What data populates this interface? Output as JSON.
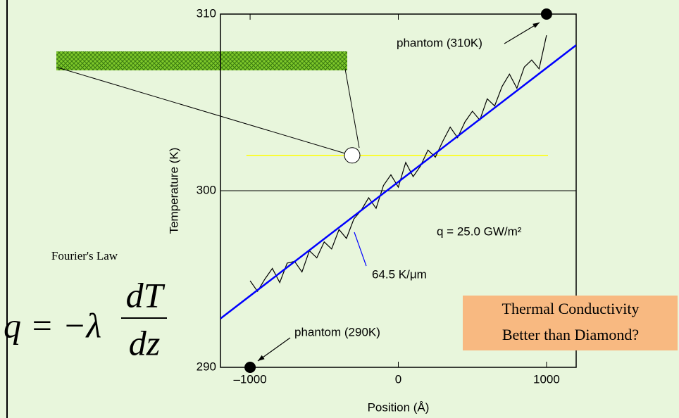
{
  "chart_data": {
    "type": "line",
    "xlabel": "Position (Å)",
    "ylabel": "Temperature (K)",
    "xlim": [
      -1200,
      1200
    ],
    "ylim": [
      290,
      310
    ],
    "xticks": [
      {
        "value": -1000,
        "label": "–1000"
      },
      0,
      1000
    ],
    "yticks": [
      290,
      300,
      310
    ],
    "series": [
      {
        "color": "#000000",
        "x": [
          -1000,
          -950,
          -900,
          -850,
          -800,
          -750,
          -700,
          -650,
          -600,
          -550,
          -500,
          -450,
          -400,
          -350,
          -300,
          -250,
          -200,
          -150,
          -100,
          -50,
          0,
          50,
          100,
          150,
          200,
          250,
          300,
          350,
          400,
          450,
          500,
          550,
          600,
          650,
          700,
          750,
          800,
          850,
          900,
          950,
          1000
        ],
        "values": [
          294.9,
          294.3,
          295.0,
          295.6,
          294.8,
          295.9,
          296.0,
          295.4,
          296.6,
          296.2,
          297.1,
          296.7,
          297.8,
          297.3,
          298.4,
          298.9,
          299.6,
          299.0,
          300.3,
          300.9,
          300.2,
          301.6,
          300.8,
          301.4,
          302.3,
          301.9,
          302.8,
          303.6,
          303.0,
          303.9,
          304.5,
          304.0,
          305.2,
          304.8,
          305.9,
          306.6,
          305.8,
          307.0,
          307.4,
          306.9,
          308.8
        ]
      },
      {
        "color": "#0000ff",
        "x": [
          -1200,
          1200
        ],
        "values": [
          292.76,
          308.24
        ]
      }
    ],
    "points": {
      "color": "#000000",
      "x": [
        -1000,
        1000
      ],
      "values": [
        290,
        310
      ]
    },
    "hline": {
      "y": 300,
      "color": "#000000"
    },
    "tube_line": {
      "y": 302,
      "x": [
        -1025,
        1010
      ],
      "color": "#ffff00"
    },
    "annotations": [
      "phantom (310K)",
      "phantom (290K)",
      "q = 25.0 GW/m²",
      "64.5 K/μm"
    ]
  },
  "slide": {
    "law": "Fourier's Law",
    "equation_left": "q = −λ",
    "numerator": "dT",
    "denominator": "dz",
    "box": [
      "Thermal Conductivity",
      "Better than Diamond?"
    ]
  }
}
